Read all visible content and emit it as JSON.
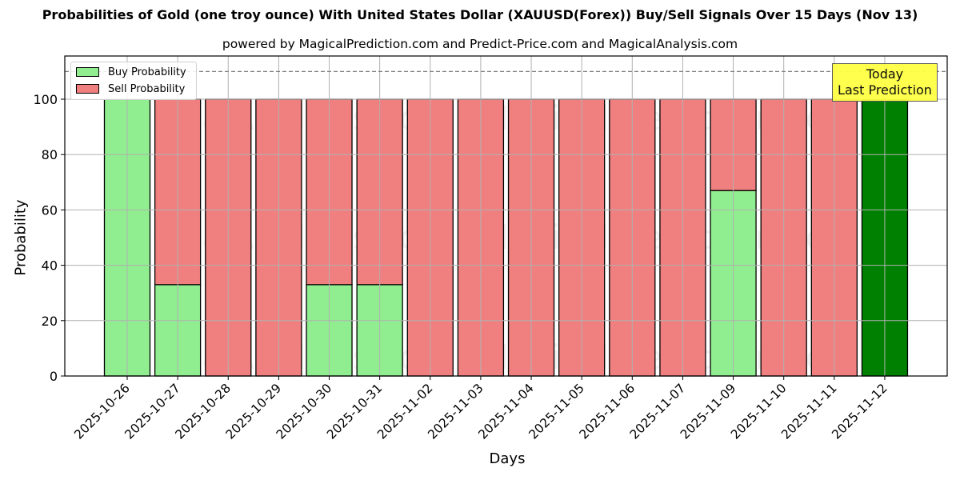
{
  "header": {
    "title": "Probabilities of Gold (one troy ounce) With United States Dollar (XAUUSD(Forex)) Buy/Sell Signals Over 15 Days (Nov 13)",
    "subtitle": "powered by MagicalPrediction.com and Predict-Price.com and MagicalAnalysis.com"
  },
  "legend": {
    "buy_label": "Buy Probability",
    "sell_label": "Sell Probability"
  },
  "annotation": {
    "line1": "Today",
    "line2": "Last Prediction"
  },
  "watermarks": [
    "MagicalAnalysis.com",
    "MagicalPrediction.com"
  ],
  "colors": {
    "buy": "#90ee90",
    "sell": "#f08080",
    "today_buy": "#008000",
    "annotation_bg": "#ffff44",
    "grid": "#b0b0b0"
  },
  "chart_data": {
    "type": "bar",
    "stacked": true,
    "title": "Probabilities of Gold (one troy ounce) With United States Dollar (XAUUSD(Forex)) Buy/Sell Signals Over 15 Days (Nov 13)",
    "subtitle": "powered by MagicalPrediction.com and Predict-Price.com and MagicalAnalysis.com",
    "xlabel": "Days",
    "ylabel": "Probability",
    "ylim": [
      0,
      115
    ],
    "yticks": [
      0,
      20,
      40,
      60,
      80,
      100
    ],
    "grid": true,
    "legend_position": "upper left",
    "reference_line": {
      "y": 110,
      "style": "dashed"
    },
    "categories": [
      "2025-10-26",
      "2025-10-27",
      "2025-10-28",
      "2025-10-29",
      "2025-10-30",
      "2025-10-31",
      "2025-11-02",
      "2025-11-03",
      "2025-11-04",
      "2025-11-05",
      "2025-11-06",
      "2025-11-07",
      "2025-11-09",
      "2025-11-10",
      "2025-11-11",
      "2025-11-12"
    ],
    "series": [
      {
        "name": "Buy Probability",
        "values": [
          100,
          33,
          0,
          0,
          33,
          33,
          0,
          0,
          0,
          0,
          0,
          0,
          67,
          0,
          0,
          100
        ]
      },
      {
        "name": "Sell Probability",
        "values": [
          0,
          67,
          100,
          100,
          67,
          67,
          100,
          100,
          100,
          100,
          100,
          100,
          33,
          100,
          100,
          0
        ]
      }
    ],
    "highlight": {
      "category": "2025-11-12",
      "label": "Today\nLast Prediction"
    }
  }
}
